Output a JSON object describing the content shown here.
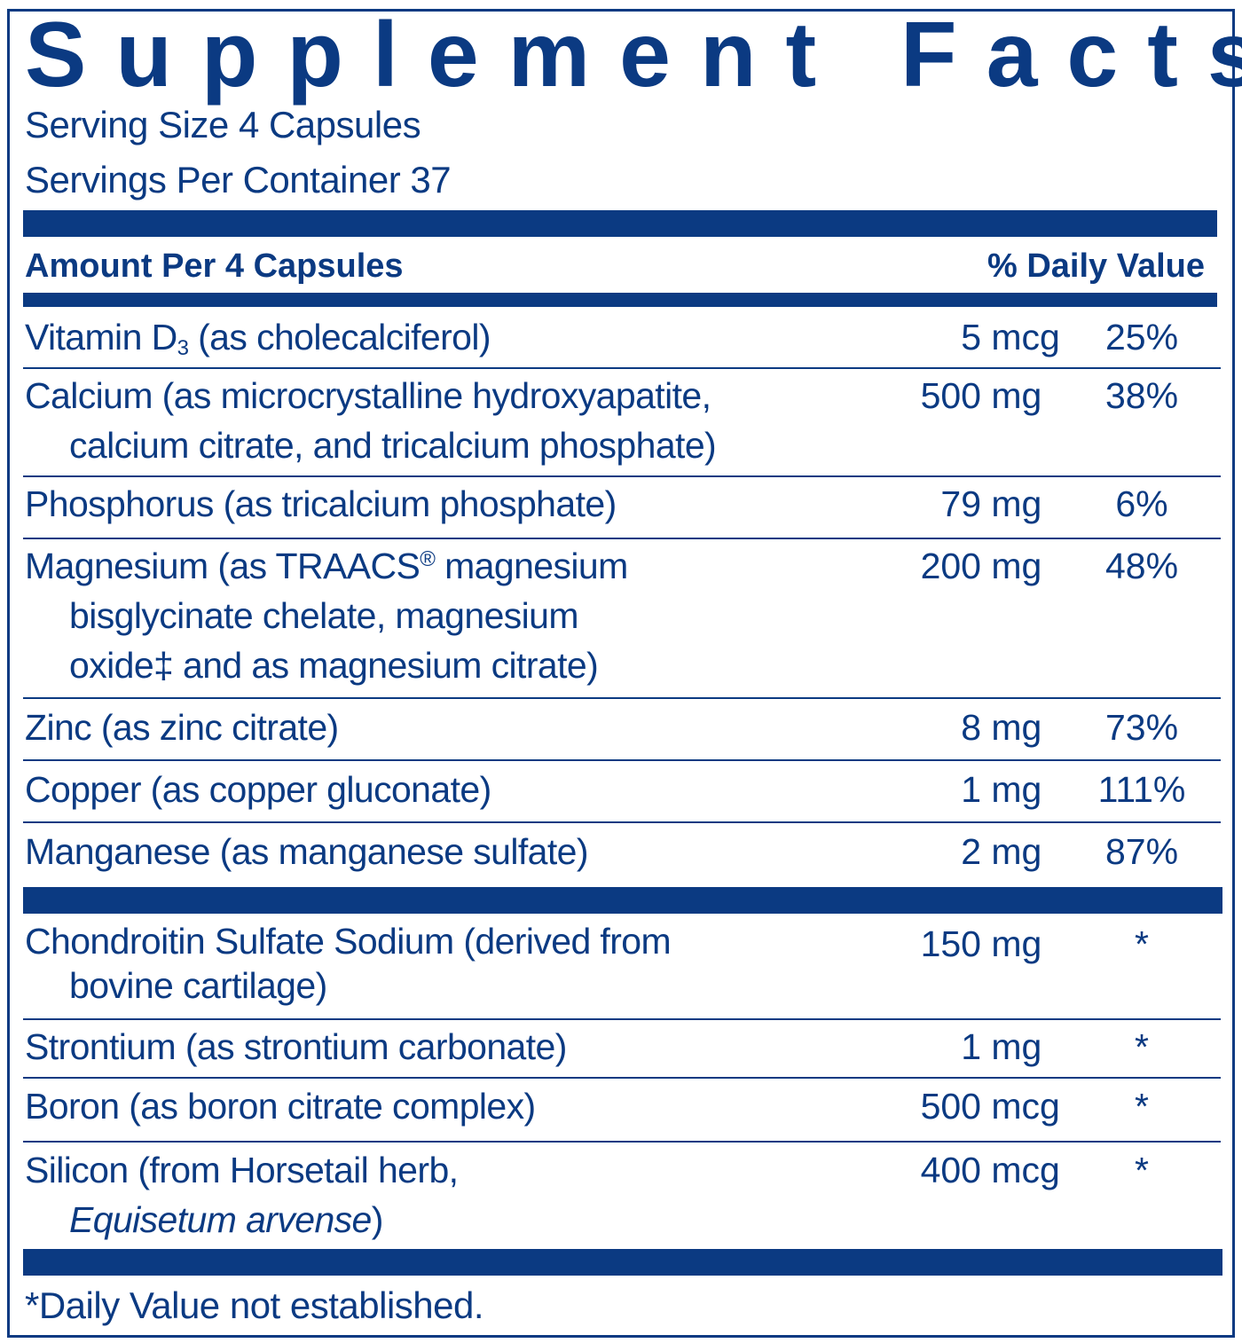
{
  "title": "Supplement Facts",
  "serving_size": "Serving Size 4 Capsules",
  "servings_per_container": "Servings Per Container 37",
  "header": {
    "amount": "Amount Per 4 Capsules",
    "dv": "% Daily Value"
  },
  "rows": [
    {
      "name_a": "Vitamin D",
      "sub": "3",
      "name_b": " (as cholecalciferol)",
      "num": "5",
      "unit": "mcg",
      "dv": "25%"
    },
    {
      "line1": "Calcium (as microcrystalline hydroxyapatite,",
      "line2": "calcium citrate, and tricalcium phosphate)",
      "num": "500",
      "unit": "mg",
      "dv": "38%"
    },
    {
      "line1": "Phosphorus (as tricalcium phosphate)",
      "num": "79",
      "unit": "mg",
      "dv": "6%"
    },
    {
      "line1a": "Magnesium (as TRAACS",
      "sup": "®",
      "line1b": " magnesium",
      "line2": "bisglycinate chelate, magnesium",
      "line3": "oxide‡ and as magnesium citrate)",
      "num": "200",
      "unit": "mg",
      "dv": "48%"
    },
    {
      "line1": "Zinc (as zinc citrate)",
      "num": "8",
      "unit": "mg",
      "dv": "73%"
    },
    {
      "line1": "Copper (as copper gluconate)",
      "num": "1",
      "unit": "mg",
      "dv": "111%"
    },
    {
      "line1": "Manganese (as manganese sulfate)",
      "num": "2",
      "unit": "mg",
      "dv": "87%"
    },
    {
      "line1": "Chondroitin Sulfate Sodium (derived from",
      "line2": "bovine cartilage)",
      "num": "150",
      "unit": "mg",
      "dv": "*"
    },
    {
      "line1": "Strontium (as strontium carbonate)",
      "num": "1",
      "unit": "mg",
      "dv": "*"
    },
    {
      "line1": "Boron (as boron citrate complex)",
      "num": "500",
      "unit": "mcg",
      "dv": "*"
    },
    {
      "line1": "Silicon (from Horsetail herb,",
      "line2_italic": "Equisetum arvense",
      "line2_end": ")",
      "num": "400",
      "unit": "mcg",
      "dv": "*"
    }
  ],
  "footnote": "*Daily Value not established.",
  "colors": {
    "brand": "#0b3a82"
  }
}
